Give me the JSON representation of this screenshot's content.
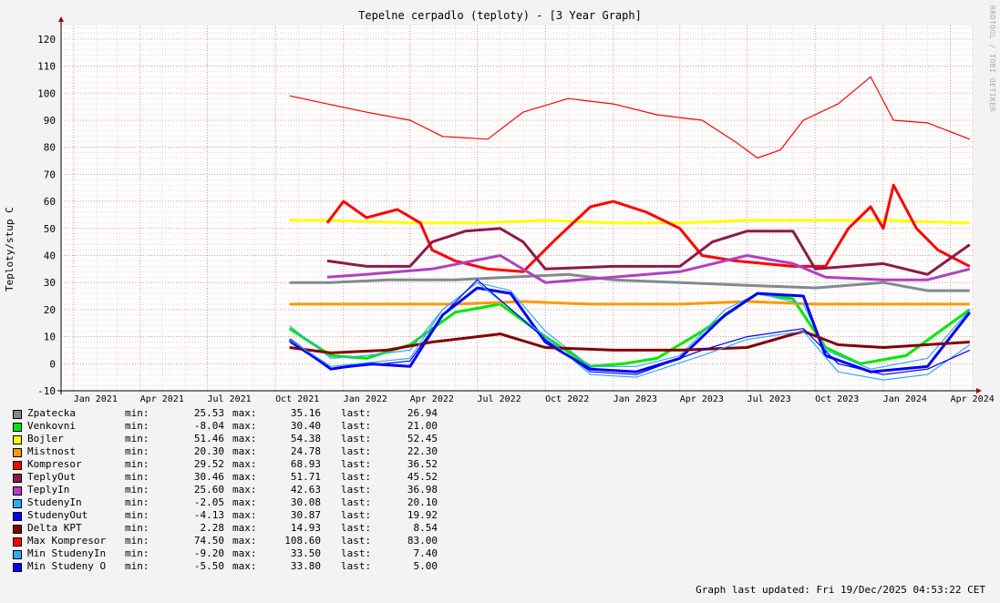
{
  "chart_data": {
    "type": "line",
    "title": "Tepelne cerpadlo (teploty) - [3 Year Graph]",
    "ylabel": "Teploty/stup C",
    "watermark": "RRDTOOL / TOBI OETIKER",
    "ylim": [
      -10,
      125
    ],
    "yticks": [
      -10,
      0,
      10,
      20,
      30,
      40,
      50,
      60,
      70,
      80,
      90,
      100,
      110,
      120
    ],
    "xlim": [
      "2020-12-15",
      "2024-05-01"
    ],
    "xticks": [
      {
        "label": "Jan 2021",
        "date": "2021-01-01"
      },
      {
        "label": "Apr 2021",
        "date": "2021-04-01"
      },
      {
        "label": "Jul 2021",
        "date": "2021-07-01"
      },
      {
        "label": "Oct 2021",
        "date": "2021-10-01"
      },
      {
        "label": "Jan 2022",
        "date": "2022-01-01"
      },
      {
        "label": "Apr 2022",
        "date": "2022-04-01"
      },
      {
        "label": "Jul 2022",
        "date": "2022-07-01"
      },
      {
        "label": "Oct 2022",
        "date": "2022-10-01"
      },
      {
        "label": "Jan 2023",
        "date": "2023-01-01"
      },
      {
        "label": "Apr 2023",
        "date": "2023-04-01"
      },
      {
        "label": "Jul 2023",
        "date": "2023-07-01"
      },
      {
        "label": "Oct 2023",
        "date": "2023-10-01"
      },
      {
        "label": "Jan 2024",
        "date": "2024-01-01"
      },
      {
        "label": "Apr 2024",
        "date": "2024-04-01"
      }
    ],
    "grid": true,
    "series": [
      {
        "name": "Zpatecka",
        "color": "#7f8c8d",
        "thick": true,
        "min": "25.53",
        "max": "35.16",
        "last": "26.94",
        "points": [
          [
            "2021-10-20",
            30
          ],
          [
            "2021-12-15",
            30
          ],
          [
            "2022-03-01",
            31
          ],
          [
            "2022-06-01",
            31
          ],
          [
            "2022-08-15",
            32
          ],
          [
            "2022-11-01",
            33
          ],
          [
            "2023-01-01",
            31
          ],
          [
            "2023-04-01",
            30
          ],
          [
            "2023-07-01",
            29
          ],
          [
            "2023-10-01",
            28
          ],
          [
            "2024-01-01",
            30
          ],
          [
            "2024-03-01",
            27
          ],
          [
            "2024-04-27",
            27
          ]
        ]
      },
      {
        "name": "Venkovni",
        "color": "#00e600",
        "thick": true,
        "min": "-8.04",
        "max": "30.40",
        "last": "21.00",
        "points": [
          [
            "2021-10-20",
            13
          ],
          [
            "2021-12-15",
            3
          ],
          [
            "2022-02-01",
            2
          ],
          [
            "2022-04-01",
            7
          ],
          [
            "2022-06-01",
            19
          ],
          [
            "2022-08-01",
            22
          ],
          [
            "2022-10-01",
            10
          ],
          [
            "2022-12-01",
            -1
          ],
          [
            "2023-01-15",
            0
          ],
          [
            "2023-03-01",
            2
          ],
          [
            "2023-05-01",
            12
          ],
          [
            "2023-07-15",
            26
          ],
          [
            "2023-09-01",
            24
          ],
          [
            "2023-10-15",
            6
          ],
          [
            "2023-12-01",
            0
          ],
          [
            "2024-02-01",
            3
          ],
          [
            "2024-04-27",
            20
          ]
        ]
      },
      {
        "name": "Bojler",
        "color": "#ffff00",
        "thick": true,
        "min": "51.46",
        "max": "54.38",
        "last": "52.45",
        "points": [
          [
            "2021-10-20",
            53
          ],
          [
            "2021-12-15",
            53
          ],
          [
            "2022-04-01",
            52
          ],
          [
            "2022-07-01",
            52
          ],
          [
            "2022-10-01",
            53
          ],
          [
            "2023-01-01",
            52
          ],
          [
            "2023-04-01",
            52
          ],
          [
            "2023-07-01",
            53
          ],
          [
            "2023-10-01",
            53
          ],
          [
            "2024-01-01",
            53
          ],
          [
            "2024-04-27",
            52
          ]
        ]
      },
      {
        "name": "Mistnost",
        "color": "#ff9900",
        "thick": true,
        "min": "20.30",
        "max": "24.78",
        "last": "22.30",
        "points": [
          [
            "2021-10-20",
            22
          ],
          [
            "2021-12-15",
            22
          ],
          [
            "2022-06-01",
            22
          ],
          [
            "2022-09-01",
            23
          ],
          [
            "2022-12-01",
            22
          ],
          [
            "2023-04-01",
            22
          ],
          [
            "2023-07-01",
            23
          ],
          [
            "2023-10-01",
            22
          ],
          [
            "2024-01-01",
            22
          ],
          [
            "2024-04-27",
            22
          ]
        ]
      },
      {
        "name": "Kompresor",
        "color": "#ff0000",
        "thick": true,
        "min": "29.52",
        "max": "68.93",
        "last": "36.52",
        "points": [
          [
            "2021-12-10",
            52
          ],
          [
            "2022-01-01",
            60
          ],
          [
            "2022-02-01",
            54
          ],
          [
            "2022-03-15",
            57
          ],
          [
            "2022-04-15",
            52
          ],
          [
            "2022-05-01",
            42
          ],
          [
            "2022-06-01",
            38
          ],
          [
            "2022-07-15",
            35
          ],
          [
            "2022-09-01",
            34
          ],
          [
            "2022-10-15",
            46
          ],
          [
            "2022-12-01",
            58
          ],
          [
            "2023-01-01",
            60
          ],
          [
            "2023-02-15",
            56
          ],
          [
            "2023-04-01",
            50
          ],
          [
            "2023-05-01",
            40
          ],
          [
            "2023-06-15",
            38
          ],
          [
            "2023-09-01",
            36
          ],
          [
            "2023-10-15",
            36
          ],
          [
            "2023-11-15",
            50
          ],
          [
            "2023-12-15",
            58
          ],
          [
            "2024-01-01",
            50
          ],
          [
            "2024-01-15",
            66
          ],
          [
            "2024-02-15",
            50
          ],
          [
            "2024-03-15",
            42
          ],
          [
            "2024-04-27",
            36
          ]
        ]
      },
      {
        "name": "TeplyOut",
        "color": "#8b1a4a",
        "thick": true,
        "min": "30.46",
        "max": "51.71",
        "last": "45.52",
        "points": [
          [
            "2021-12-10",
            38
          ],
          [
            "2022-02-01",
            36
          ],
          [
            "2022-04-01",
            36
          ],
          [
            "2022-05-01",
            45
          ],
          [
            "2022-06-15",
            49
          ],
          [
            "2022-08-01",
            50
          ],
          [
            "2022-09-01",
            45
          ],
          [
            "2022-10-01",
            35
          ],
          [
            "2023-01-01",
            36
          ],
          [
            "2023-04-01",
            36
          ],
          [
            "2023-05-15",
            45
          ],
          [
            "2023-07-01",
            49
          ],
          [
            "2023-09-01",
            49
          ],
          [
            "2023-10-01",
            35
          ],
          [
            "2024-01-01",
            37
          ],
          [
            "2024-03-01",
            33
          ],
          [
            "2024-04-27",
            44
          ]
        ]
      },
      {
        "name": "TeplyIn",
        "color": "#b040c0",
        "thick": true,
        "min": "25.60",
        "max": "42.63",
        "last": "36.98",
        "points": [
          [
            "2021-12-10",
            32
          ],
          [
            "2022-02-01",
            33
          ],
          [
            "2022-05-01",
            35
          ],
          [
            "2022-08-01",
            40
          ],
          [
            "2022-10-01",
            30
          ],
          [
            "2023-01-01",
            32
          ],
          [
            "2023-04-01",
            34
          ],
          [
            "2023-07-01",
            40
          ],
          [
            "2023-09-01",
            37
          ],
          [
            "2023-10-15",
            32
          ],
          [
            "2024-01-01",
            31
          ],
          [
            "2024-03-01",
            31
          ],
          [
            "2024-04-27",
            35
          ]
        ]
      },
      {
        "name": "StudenyIn",
        "color": "#33aaff",
        "thick": false,
        "min": "-2.05",
        "max": "30.08",
        "last": "20.10",
        "points": [
          [
            "2021-10-20",
            14
          ],
          [
            "2021-12-15",
            2
          ],
          [
            "2022-02-01",
            3
          ],
          [
            "2022-04-01",
            5
          ],
          [
            "2022-05-15",
            20
          ],
          [
            "2022-07-01",
            30
          ],
          [
            "2022-08-15",
            27
          ],
          [
            "2022-10-01",
            12
          ],
          [
            "2022-12-01",
            -1
          ],
          [
            "2023-02-01",
            -1
          ],
          [
            "2023-04-01",
            3
          ],
          [
            "2023-06-01",
            20
          ],
          [
            "2023-07-15",
            26
          ],
          [
            "2023-09-15",
            22
          ],
          [
            "2023-10-15",
            5
          ],
          [
            "2023-12-15",
            -2
          ],
          [
            "2024-03-01",
            2
          ],
          [
            "2024-04-27",
            20
          ]
        ]
      },
      {
        "name": "StudenyOut",
        "color": "#0000ff",
        "thick": true,
        "min": "-4.13",
        "max": "30.87",
        "last": "19.92",
        "points": [
          [
            "2021-10-20",
            9
          ],
          [
            "2021-12-15",
            -2
          ],
          [
            "2022-02-01",
            0
          ],
          [
            "2022-04-01",
            -1
          ],
          [
            "2022-05-15",
            18
          ],
          [
            "2022-07-01",
            28
          ],
          [
            "2022-08-15",
            26
          ],
          [
            "2022-10-01",
            8
          ],
          [
            "2022-12-01",
            -2
          ],
          [
            "2023-02-01",
            -3
          ],
          [
            "2023-04-01",
            2
          ],
          [
            "2023-06-01",
            18
          ],
          [
            "2023-07-15",
            26
          ],
          [
            "2023-09-15",
            25
          ],
          [
            "2023-10-15",
            3
          ],
          [
            "2023-12-15",
            -3
          ],
          [
            "2024-03-01",
            -1
          ],
          [
            "2024-04-27",
            19
          ]
        ]
      },
      {
        "name": "Delta KPT",
        "color": "#800000",
        "thick": true,
        "min": "2.28",
        "max": "14.93",
        "last": "8.54",
        "points": [
          [
            "2021-10-20",
            6
          ],
          [
            "2021-12-15",
            4
          ],
          [
            "2022-03-01",
            5
          ],
          [
            "2022-05-01",
            8
          ],
          [
            "2022-08-01",
            11
          ],
          [
            "2022-10-01",
            6
          ],
          [
            "2023-01-01",
            5
          ],
          [
            "2023-04-01",
            5
          ],
          [
            "2023-07-01",
            6
          ],
          [
            "2023-09-15",
            12
          ],
          [
            "2023-11-01",
            7
          ],
          [
            "2024-01-01",
            6
          ],
          [
            "2024-04-27",
            8
          ]
        ]
      },
      {
        "name": "Max Kompresor",
        "color": "#ff0000",
        "thick": false,
        "min": "74.50",
        "max": "108.60",
        "last": "83.00",
        "points": [
          [
            "2021-10-20",
            99
          ],
          [
            "2021-12-10",
            96
          ],
          [
            "2022-02-01",
            93
          ],
          [
            "2022-04-01",
            90
          ],
          [
            "2022-05-15",
            84
          ],
          [
            "2022-07-15",
            83
          ],
          [
            "2022-09-01",
            93
          ],
          [
            "2022-11-01",
            98
          ],
          [
            "2023-01-01",
            96
          ],
          [
            "2023-03-01",
            92
          ],
          [
            "2023-05-01",
            90
          ],
          [
            "2023-06-15",
            82
          ],
          [
            "2023-07-15",
            76
          ],
          [
            "2023-08-15",
            79
          ],
          [
            "2023-09-15",
            90
          ],
          [
            "2023-11-01",
            96
          ],
          [
            "2023-12-15",
            106
          ],
          [
            "2024-01-15",
            90
          ],
          [
            "2024-03-01",
            89
          ],
          [
            "2024-04-27",
            83
          ]
        ]
      },
      {
        "name": "Min StudenyIn",
        "color": "#33aaff",
        "thick": false,
        "min": "-9.20",
        "max": "33.50",
        "last": "7.40",
        "points": [
          [
            "2021-10-20",
            9
          ],
          [
            "2021-12-15",
            -1
          ],
          [
            "2022-04-01",
            2
          ],
          [
            "2022-05-15",
            20
          ],
          [
            "2022-07-01",
            30
          ],
          [
            "2022-10-01",
            10
          ],
          [
            "2022-12-01",
            -4
          ],
          [
            "2023-02-01",
            -5
          ],
          [
            "2023-05-01",
            3
          ],
          [
            "2023-07-01",
            9
          ],
          [
            "2023-09-15",
            12
          ],
          [
            "2023-11-01",
            -3
          ],
          [
            "2024-01-01",
            -6
          ],
          [
            "2024-03-01",
            -4
          ],
          [
            "2024-04-27",
            7
          ]
        ]
      },
      {
        "name": "Min Studeny O",
        "color": "#0000ff",
        "thick": false,
        "min": "-5.50",
        "max": "33.80",
        "last": "5.00",
        "points": [
          [
            "2021-10-20",
            8
          ],
          [
            "2021-12-15",
            -2
          ],
          [
            "2022-04-01",
            1
          ],
          [
            "2022-05-15",
            18
          ],
          [
            "2022-07-01",
            31
          ],
          [
            "2022-10-01",
            9
          ],
          [
            "2022-12-01",
            -3
          ],
          [
            "2023-02-01",
            -4
          ],
          [
            "2023-05-01",
            5
          ],
          [
            "2023-07-01",
            10
          ],
          [
            "2023-09-15",
            13
          ],
          [
            "2023-11-01",
            0
          ],
          [
            "2024-01-01",
            -4
          ],
          [
            "2024-03-01",
            -2
          ],
          [
            "2024-04-27",
            5
          ]
        ]
      }
    ]
  },
  "legend_labels": {
    "min": "min:",
    "max": "max:",
    "last": "last:"
  },
  "footer": "Graph last updated: Fri 19/Dec/2025 04:53:22 CET"
}
